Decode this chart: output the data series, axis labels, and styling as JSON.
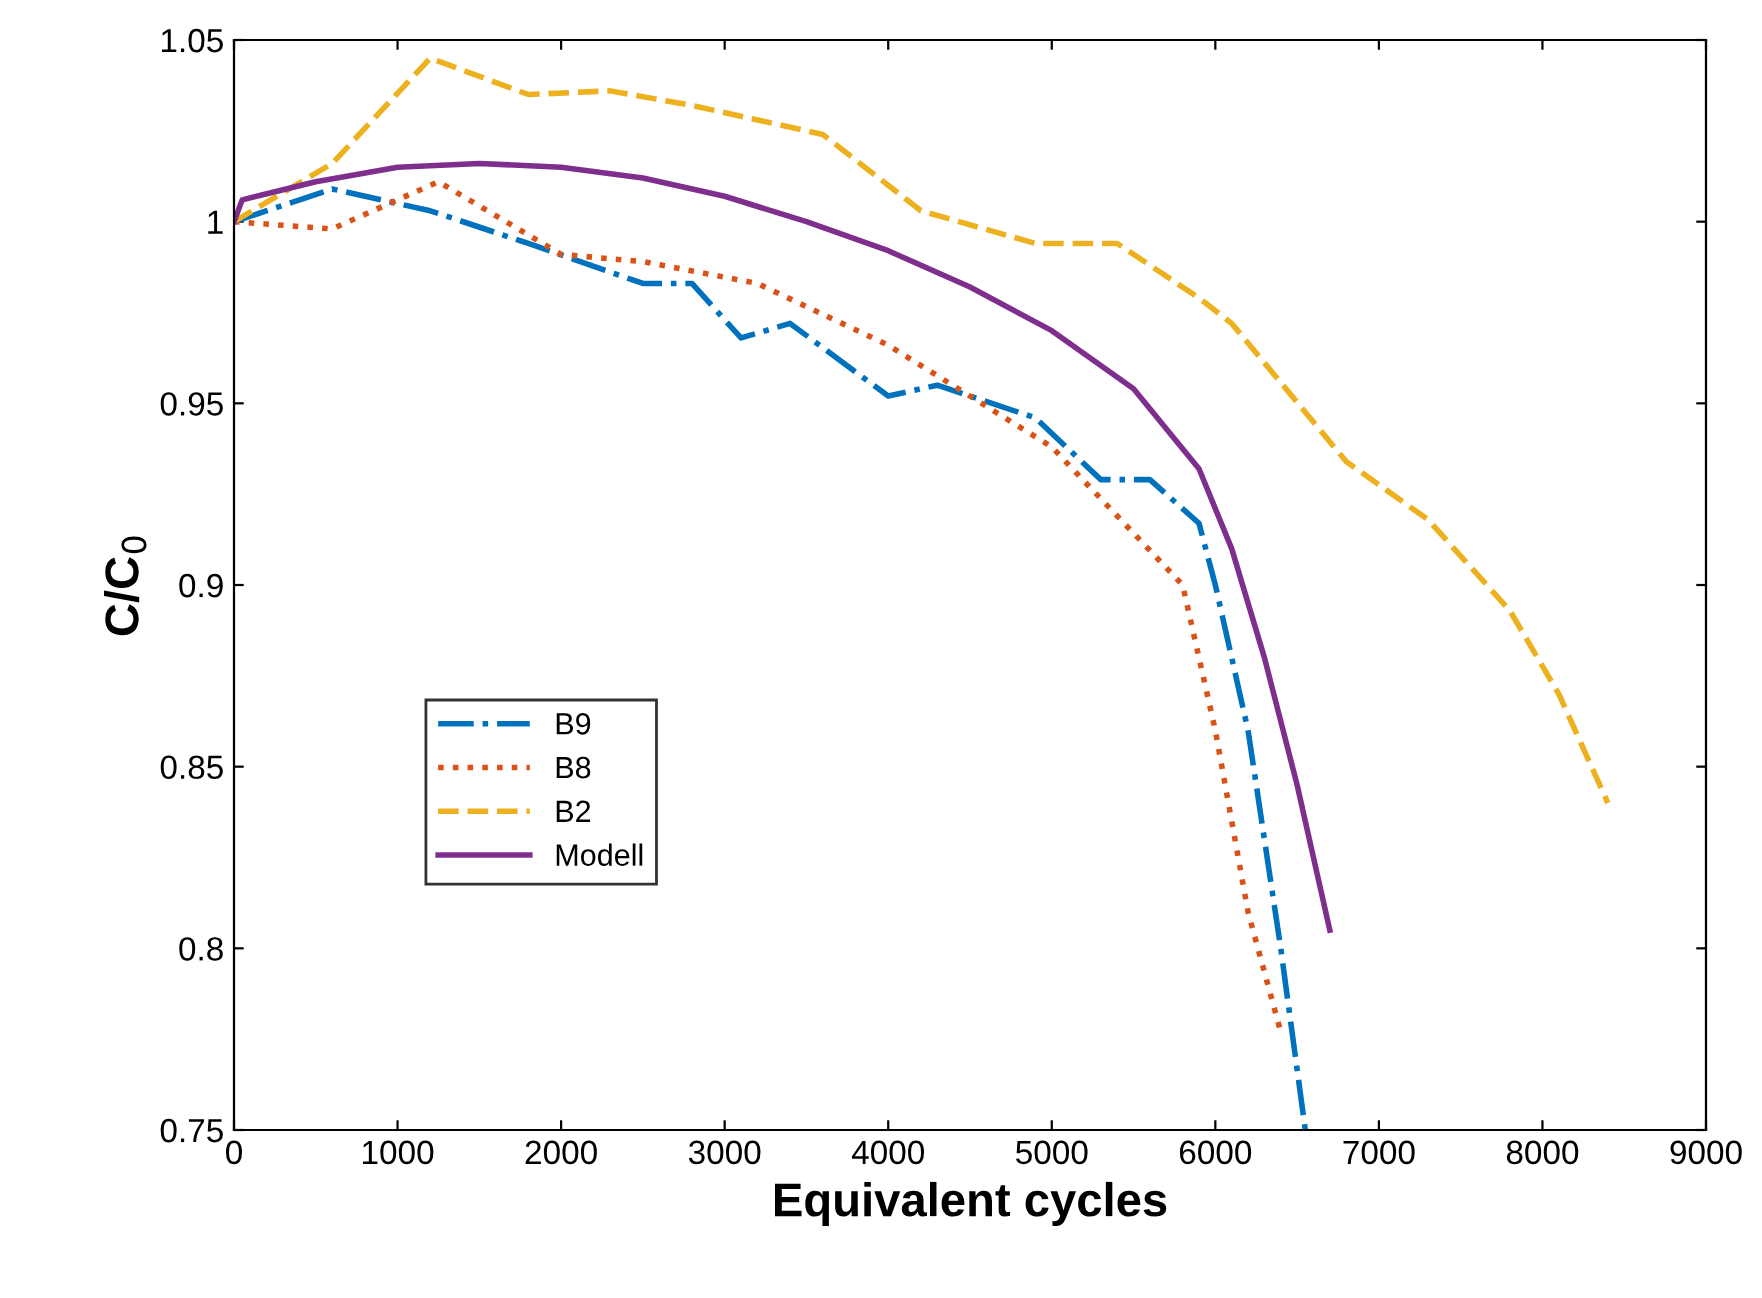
{
  "chart_data": {
    "type": "line",
    "xlabel": "Equivalent cycles",
    "ylabel": "C/C$_{0}$",
    "xlim": [
      0,
      9000
    ],
    "xticks": [
      0,
      1000,
      2000,
      3000,
      4000,
      5000,
      6000,
      7000,
      8000,
      9000
    ],
    "ylim": [
      0.75,
      1.05
    ],
    "yticks": [
      0.75,
      0.8,
      0.85,
      0.9,
      0.95,
      1,
      1.05
    ],
    "grid": false,
    "legend": "center left",
    "marker": "none",
    "series": [
      {
        "name": "B9",
        "color": "#0072bd",
        "line_style": "dashdot",
        "x": [
          0,
          600,
          1200,
          1800,
          2500,
          2800,
          3100,
          3400,
          4000,
          4300,
          4900,
          5300,
          5600,
          5900,
          6000,
          6200,
          6400,
          6550
        ],
        "values": [
          1.0,
          1.009,
          1.003,
          0.994,
          0.983,
          0.983,
          0.968,
          0.972,
          0.952,
          0.955,
          0.946,
          0.929,
          0.929,
          0.917,
          0.9,
          0.86,
          0.8,
          0.75
        ]
      },
      {
        "name": "B8",
        "color": "#d95319",
        "line_style": "dotted",
        "x": [
          0,
          600,
          1250,
          2000,
          2500,
          3200,
          4000,
          5000,
          5800,
          6000,
          6200,
          6400
        ],
        "values": [
          1.0,
          0.998,
          1.011,
          0.991,
          0.989,
          0.983,
          0.966,
          0.938,
          0.9,
          0.86,
          0.81,
          0.777
        ]
      },
      {
        "name": "B2",
        "color": "#edb120",
        "line_style": "dashed",
        "x": [
          0,
          600,
          1200,
          1800,
          2300,
          2800,
          3600,
          4200,
          4900,
          5400,
          5900,
          6100,
          6800,
          7300,
          7800,
          8100,
          8400
        ],
        "values": [
          1.0,
          1.016,
          1.045,
          1.035,
          1.036,
          1.032,
          1.024,
          1.003,
          0.994,
          0.994,
          0.979,
          0.972,
          0.934,
          0.918,
          0.893,
          0.87,
          0.84
        ]
      },
      {
        "name": "Modell",
        "color": "#7e2f8e",
        "line_style": "solid",
        "x": [
          0,
          50,
          500,
          1000,
          1500,
          2000,
          2500,
          3000,
          3500,
          4000,
          4500,
          5000,
          5500,
          5900,
          6100,
          6300,
          6500,
          6700
        ],
        "values": [
          1.0,
          1.006,
          1.011,
          1.015,
          1.016,
          1.015,
          1.012,
          1.007,
          1.0,
          0.992,
          0.982,
          0.97,
          0.954,
          0.932,
          0.91,
          0.88,
          0.845,
          0.805
        ]
      }
    ]
  }
}
